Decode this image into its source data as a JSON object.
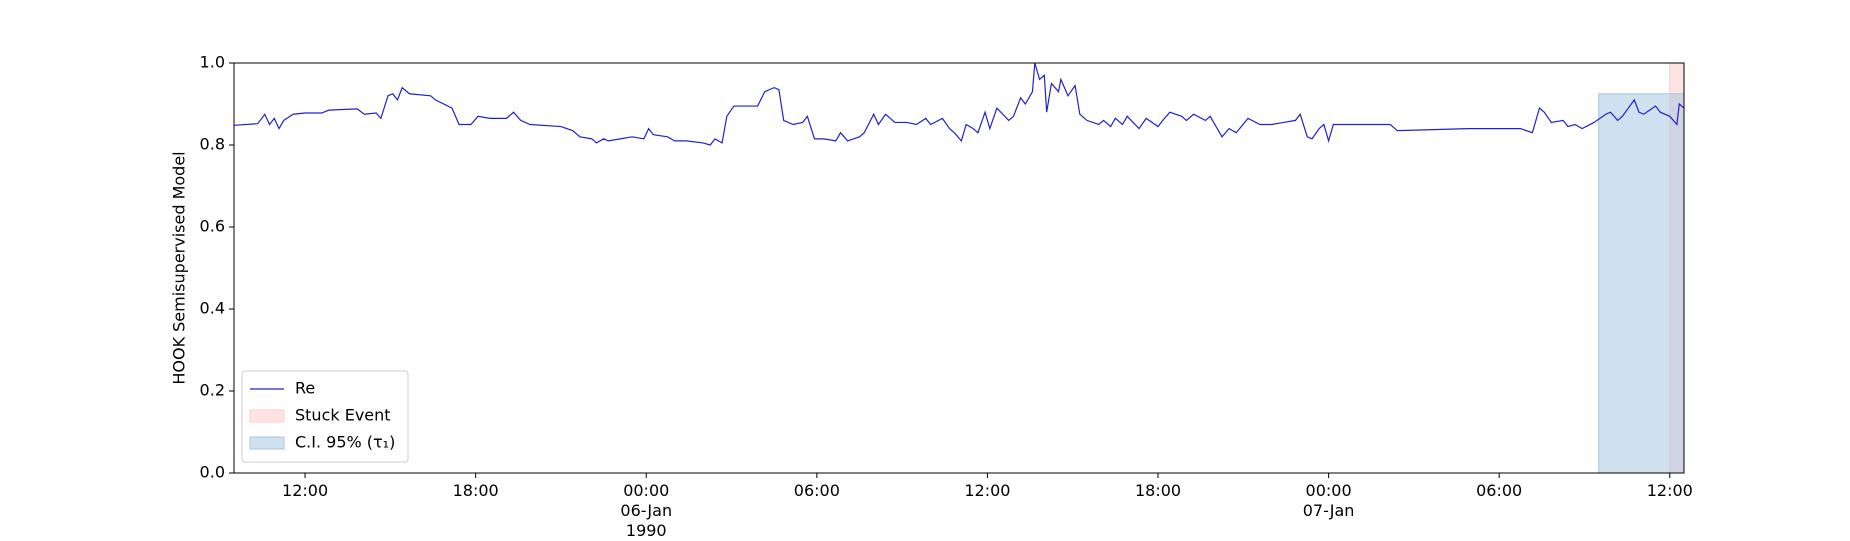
{
  "chart_data": {
    "type": "line",
    "ylabel": "HOOK Semisupervised Model",
    "xlim": [
      "1990-01-05 09:30",
      "1990-01-07 12:30"
    ],
    "xticks": [
      {
        "value": "1990-01-05 12:00",
        "label": "12:00"
      },
      {
        "value": "1990-01-05 18:00",
        "label": "18:00"
      },
      {
        "value": "1990-01-06 00:00",
        "label": "00:00\n06-Jan\n1990"
      },
      {
        "value": "1990-01-06 06:00",
        "label": "06:00"
      },
      {
        "value": "1990-01-06 12:00",
        "label": "12:00"
      },
      {
        "value": "1990-01-06 18:00",
        "label": "18:00"
      },
      {
        "value": "1990-01-07 00:00",
        "label": "00:00\n07-Jan"
      },
      {
        "value": "1990-01-07 06:00",
        "label": "06:00"
      },
      {
        "value": "1990-01-07 12:00",
        "label": "12:00"
      }
    ],
    "ylim": [
      0,
      1
    ],
    "yticks": [
      {
        "value": 0,
        "label": "0.0"
      },
      {
        "value": 0.2,
        "label": "0.2"
      },
      {
        "value": 0.4,
        "label": "0.4"
      },
      {
        "value": 0.6,
        "label": "0.6"
      },
      {
        "value": 0.8,
        "label": "0.8"
      },
      {
        "value": 1,
        "label": "1.0"
      }
    ],
    "legend": "lower left",
    "series": [
      {
        "name": "Re",
        "color": "#2222cc",
        "x": [
          "1990-01-05 09:30",
          "1990-01-05 10:20",
          "1990-01-05 10:35",
          "1990-01-05 10:45",
          "1990-01-05 10:55",
          "1990-01-05 11:05",
          "1990-01-05 11:15",
          "1990-01-05 11:35",
          "1990-01-05 12:00",
          "1990-01-05 12:35",
          "1990-01-05 12:50",
          "1990-01-05 13:50",
          "1990-01-05 14:05",
          "1990-01-05 14:30",
          "1990-01-05 14:40",
          "1990-01-05 14:55",
          "1990-01-05 15:05",
          "1990-01-05 15:15",
          "1990-01-05 15:25",
          "1990-01-05 15:40",
          "1990-01-05 16:25",
          "1990-01-05 16:35",
          "1990-01-05 17:10",
          "1990-01-05 17:25",
          "1990-01-05 17:50",
          "1990-01-05 18:05",
          "1990-01-05 18:30",
          "1990-01-05 19:05",
          "1990-01-05 19:20",
          "1990-01-05 19:35",
          "1990-01-05 19:55",
          "1990-01-05 21:00",
          "1990-01-05 21:25",
          "1990-01-05 21:40",
          "1990-01-05 22:05",
          "1990-01-05 22:15",
          "1990-01-05 22:30",
          "1990-01-05 22:40",
          "1990-01-05 23:05",
          "1990-01-05 23:30",
          "1990-01-05 23:55",
          "1990-01-06 00:05",
          "1990-01-06 00:15",
          "1990-01-06 00:45",
          "1990-01-06 01:00",
          "1990-01-06 01:25",
          "1990-01-06 02:00",
          "1990-01-06 02:15",
          "1990-01-06 02:25",
          "1990-01-06 02:40",
          "1990-01-06 02:50",
          "1990-01-06 03:05",
          "1990-01-06 03:55",
          "1990-01-06 04:10",
          "1990-01-06 04:30",
          "1990-01-06 04:40",
          "1990-01-06 04:50",
          "1990-01-06 05:10",
          "1990-01-06 05:30",
          "1990-01-06 05:40",
          "1990-01-06 05:55",
          "1990-01-06 06:15",
          "1990-01-06 06:40",
          "1990-01-06 06:50",
          "1990-01-06 07:05",
          "1990-01-06 07:30",
          "1990-01-06 07:40",
          "1990-01-06 08:00",
          "1990-01-06 08:10",
          "1990-01-06 08:25",
          "1990-01-06 08:45",
          "1990-01-06 09:10",
          "1990-01-06 09:30",
          "1990-01-06 09:50",
          "1990-01-06 10:00",
          "1990-01-06 10:25",
          "1990-01-06 10:40",
          "1990-01-06 10:50",
          "1990-01-06 11:05",
          "1990-01-06 11:15",
          "1990-01-06 11:30",
          "1990-01-06 11:40",
          "1990-01-06 11:55",
          "1990-01-06 12:05",
          "1990-01-06 12:20",
          "1990-01-06 12:45",
          "1990-01-06 12:55",
          "1990-01-06 13:10",
          "1990-01-06 13:20",
          "1990-01-06 13:35",
          "1990-01-06 13:40",
          "1990-01-06 13:50",
          "1990-01-06 14:00",
          "1990-01-06 14:05",
          "1990-01-06 14:15",
          "1990-01-06 14:30",
          "1990-01-06 14:35",
          "1990-01-06 14:50",
          "1990-01-06 15:05",
          "1990-01-06 15:15",
          "1990-01-06 15:30",
          "1990-01-06 15:55",
          "1990-01-06 16:05",
          "1990-01-06 16:20",
          "1990-01-06 16:30",
          "1990-01-06 16:45",
          "1990-01-06 16:55",
          "1990-01-06 17:20",
          "1990-01-06 17:35",
          "1990-01-06 18:00",
          "1990-01-06 18:10",
          "1990-01-06 18:25",
          "1990-01-06 18:50",
          "1990-01-06 19:00",
          "1990-01-06 19:15",
          "1990-01-06 19:40",
          "1990-01-06 19:50",
          "1990-01-06 20:05",
          "1990-01-06 20:15",
          "1990-01-06 20:30",
          "1990-01-06 20:45",
          "1990-01-06 21:10",
          "1990-01-06 21:35",
          "1990-01-06 22:00",
          "1990-01-06 22:25",
          "1990-01-06 22:50",
          "1990-01-06 23:00",
          "1990-01-06 23:15",
          "1990-01-06 23:25",
          "1990-01-06 23:40",
          "1990-01-06 23:50",
          "1990-01-07 00:00",
          "1990-01-07 00:10",
          "1990-01-07 02:10",
          "1990-01-07 02:25",
          "1990-01-07 04:55",
          "1990-01-07 06:45",
          "1990-01-07 07:10",
          "1990-01-07 07:25",
          "1990-01-07 07:35",
          "1990-01-07 07:50",
          "1990-01-07 08:15",
          "1990-01-07 08:25",
          "1990-01-07 08:40",
          "1990-01-07 08:55",
          "1990-01-07 09:20",
          "1990-01-07 09:45",
          "1990-01-07 09:55",
          "1990-01-07 10:10",
          "1990-01-07 10:20",
          "1990-01-07 10:45",
          "1990-01-07 10:55",
          "1990-01-07 11:05",
          "1990-01-07 11:30",
          "1990-01-07 11:40",
          "1990-01-07 12:00",
          "1990-01-07 12:15",
          "1990-01-07 12:20",
          "1990-01-07 12:30"
        ],
        "values": [
          0.848,
          0.852,
          0.875,
          0.85,
          0.865,
          0.84,
          0.86,
          0.875,
          0.878,
          0.878,
          0.885,
          0.888,
          0.875,
          0.878,
          0.865,
          0.92,
          0.925,
          0.91,
          0.94,
          0.925,
          0.92,
          0.91,
          0.89,
          0.85,
          0.85,
          0.87,
          0.865,
          0.865,
          0.88,
          0.86,
          0.85,
          0.845,
          0.835,
          0.82,
          0.815,
          0.805,
          0.815,
          0.81,
          0.815,
          0.82,
          0.815,
          0.84,
          0.825,
          0.82,
          0.81,
          0.81,
          0.805,
          0.8,
          0.815,
          0.805,
          0.87,
          0.895,
          0.895,
          0.93,
          0.94,
          0.935,
          0.86,
          0.85,
          0.855,
          0.87,
          0.815,
          0.815,
          0.81,
          0.83,
          0.81,
          0.82,
          0.83,
          0.875,
          0.85,
          0.875,
          0.855,
          0.855,
          0.85,
          0.865,
          0.85,
          0.865,
          0.84,
          0.83,
          0.81,
          0.85,
          0.84,
          0.83,
          0.88,
          0.84,
          0.89,
          0.86,
          0.87,
          0.915,
          0.9,
          0.93,
          1.0,
          0.96,
          0.97,
          0.88,
          0.95,
          0.93,
          0.96,
          0.92,
          0.945,
          0.875,
          0.86,
          0.85,
          0.86,
          0.845,
          0.865,
          0.85,
          0.87,
          0.84,
          0.865,
          0.845,
          0.86,
          0.88,
          0.87,
          0.86,
          0.875,
          0.86,
          0.87,
          0.84,
          0.82,
          0.84,
          0.83,
          0.865,
          0.85,
          0.85,
          0.855,
          0.86,
          0.875,
          0.82,
          0.815,
          0.84,
          0.85,
          0.81,
          0.85,
          0.85,
          0.835,
          0.84,
          0.84,
          0.83,
          0.89,
          0.88,
          0.855,
          0.86,
          0.845,
          0.85,
          0.84,
          0.855,
          0.875,
          0.88,
          0.86,
          0.87,
          0.91,
          0.88,
          0.875,
          0.895,
          0.88,
          0.87,
          0.85,
          0.9,
          0.89
        ]
      }
    ],
    "spans": [
      {
        "name": "Stuck Event",
        "color": "#ffcccc",
        "x": [
          "1990-01-07 12:00",
          "1990-01-07 12:30"
        ],
        "y": [
          0,
          1
        ]
      },
      {
        "name": "C.I. 95% (τ₁)",
        "color": "#a7c7e2",
        "x": [
          "1990-01-07 09:30",
          "1990-01-07 12:30"
        ],
        "y": [
          0,
          0.925
        ]
      }
    ]
  }
}
